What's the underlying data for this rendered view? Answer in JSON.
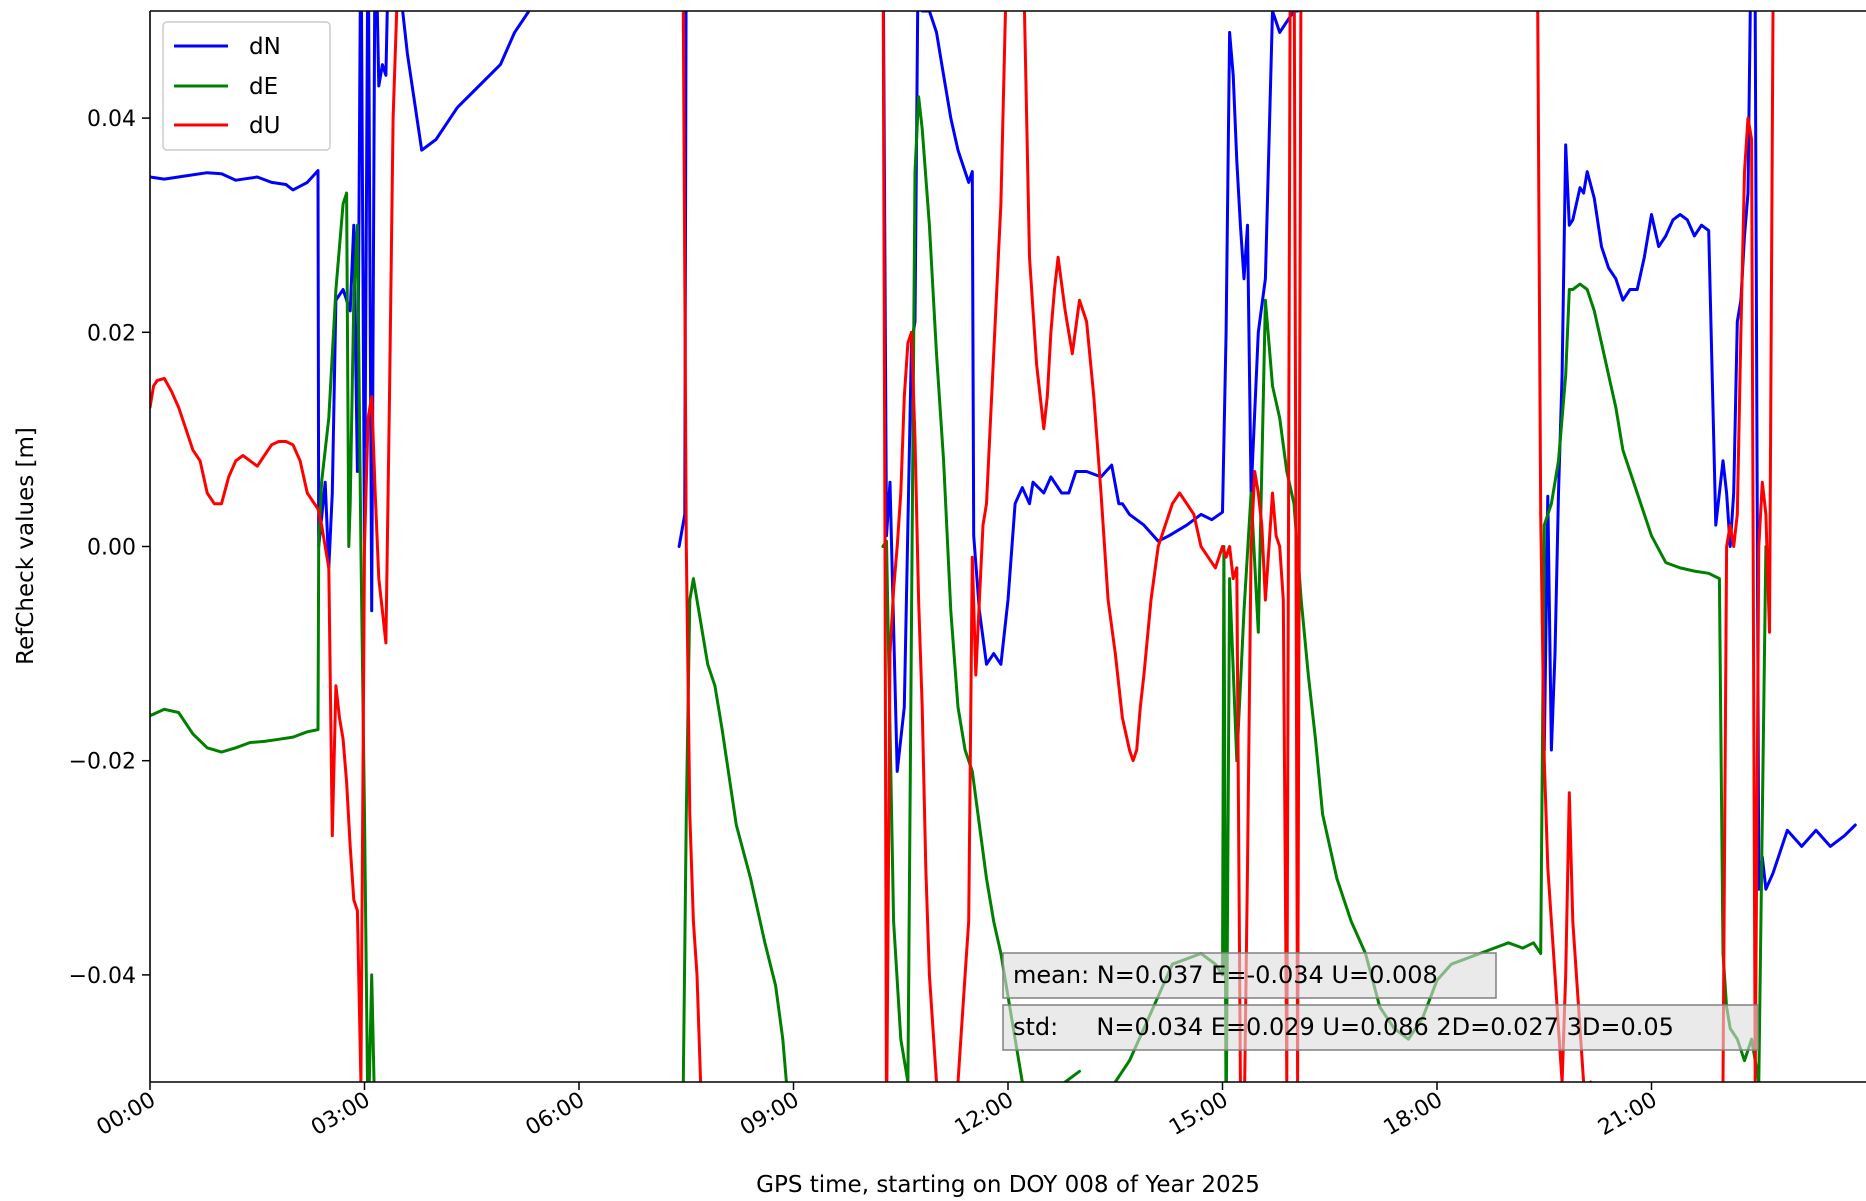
{
  "chart_data": {
    "type": "line",
    "xlabel": "GPS time, starting on DOY 008 of Year 2025",
    "ylabel": "RefCheck values [m]",
    "xlim": [
      0,
      24
    ],
    "ylim": [
      -0.05,
      0.05
    ],
    "x_ticks": [
      {
        "value": 0,
        "label": "00:00"
      },
      {
        "value": 3,
        "label": "03:00"
      },
      {
        "value": 6,
        "label": "06:00"
      },
      {
        "value": 9,
        "label": "09:00"
      },
      {
        "value": 12,
        "label": "12:00"
      },
      {
        "value": 15,
        "label": "15:00"
      },
      {
        "value": 18,
        "label": "18:00"
      },
      {
        "value": 21,
        "label": "21:00"
      }
    ],
    "y_ticks": [
      {
        "value": 0.04,
        "label": "0.04"
      },
      {
        "value": 0.02,
        "label": "0.02"
      },
      {
        "value": 0.0,
        "label": "0.00"
      },
      {
        "value": -0.02,
        "label": "−0.02"
      },
      {
        "value": -0.04,
        "label": "−0.04"
      }
    ],
    "grid": false,
    "legend_position": "top-left",
    "series": [
      {
        "name": "dN",
        "color": "#0000ff",
        "x": [
          0.0,
          0.2,
          0.5,
          0.8,
          1.0,
          1.2,
          1.5,
          1.7,
          1.9,
          2.0,
          2.2,
          2.35,
          2.36,
          2.45,
          2.5,
          2.55,
          2.6,
          2.7,
          2.8,
          2.85,
          2.9,
          2.95,
          3.0,
          3.05,
          3.1,
          3.15,
          3.2,
          3.25,
          3.3,
          3.35,
          3.5,
          3.6,
          3.8,
          4.0,
          4.3,
          4.6,
          4.9,
          5.1,
          5.3
        ],
        "y": [
          0.0345,
          0.0343,
          0.0346,
          0.0349,
          0.0348,
          0.0342,
          0.0345,
          0.034,
          0.0338,
          0.0333,
          0.034,
          0.0351,
          0.0,
          0.006,
          -0.002,
          0.005,
          0.023,
          0.024,
          0.022,
          0.03,
          0.007,
          0.06,
          0.0,
          0.06,
          -0.006,
          0.06,
          0.043,
          0.045,
          0.044,
          0.06,
          0.052,
          0.046,
          0.037,
          0.038,
          0.041,
          0.043,
          0.045,
          0.048,
          0.05
        ]
      },
      {
        "name": "dN",
        "color": "#0000ff",
        "x": [
          7.4,
          7.48,
          7.5
        ],
        "y": [
          0.0,
          0.003,
          0.06
        ]
      },
      {
        "name": "dN",
        "color": "#0000ff",
        "x": [
          10.25,
          10.3,
          10.35,
          10.45,
          10.55,
          10.6,
          10.65,
          10.7,
          10.75,
          10.8,
          10.9,
          11.0,
          11.1,
          11.2,
          11.3,
          11.35,
          11.45,
          11.5,
          11.52,
          11.6,
          11.7,
          11.8,
          11.9,
          12.0,
          12.1,
          12.2,
          12.3,
          12.35,
          12.5,
          12.6,
          12.75,
          12.85,
          12.95,
          13.1,
          13.3,
          13.45,
          13.55,
          13.6,
          13.7,
          13.9,
          14.1,
          14.25,
          14.5,
          14.7,
          14.85,
          15.0,
          15.05,
          15.1,
          15.15,
          15.2,
          15.25,
          15.3,
          15.35,
          15.4,
          15.5,
          15.6,
          15.7,
          15.8,
          15.9,
          16.0,
          16.05
        ],
        "y": [
          0.06,
          0.001,
          0.006,
          -0.021,
          -0.015,
          0.002,
          0.019,
          0.021,
          0.06,
          0.05,
          0.05,
          0.048,
          0.044,
          0.04,
          0.037,
          0.036,
          0.034,
          0.035,
          0.001,
          -0.006,
          -0.011,
          -0.01,
          -0.011,
          -0.005,
          0.004,
          0.0055,
          0.004,
          0.006,
          0.005,
          0.0065,
          0.005,
          0.005,
          0.007,
          0.007,
          0.0065,
          0.0076,
          0.004,
          0.004,
          0.003,
          0.002,
          0.0005,
          0.001,
          0.002,
          0.003,
          0.0025,
          0.0032,
          0.02,
          0.048,
          0.044,
          0.036,
          0.03,
          0.025,
          0.03,
          0.005,
          0.02,
          0.025,
          0.05,
          0.048,
          0.049,
          0.05,
          0.05
        ]
      },
      {
        "name": "dN",
        "color": "#0000ff",
        "x": [
          19.5,
          19.55,
          19.6,
          19.65,
          19.7,
          19.75,
          19.8,
          19.85,
          19.9,
          19.95,
          20.0,
          20.05,
          20.1,
          20.2,
          20.3,
          20.4,
          20.5,
          20.6,
          20.7,
          20.8,
          20.9,
          21.0,
          21.1,
          21.2,
          21.3,
          21.4,
          21.5,
          21.6,
          21.7,
          21.8,
          21.9,
          22.0,
          22.05,
          22.1,
          22.15,
          22.2,
          22.25,
          22.3,
          22.35,
          22.4,
          22.45,
          22.5,
          22.55,
          22.6,
          22.7,
          22.9,
          23.1,
          23.3,
          23.5,
          23.7,
          23.85
        ],
        "y": [
          -0.019,
          0.0047,
          -0.019,
          -0.01,
          0.005,
          0.016,
          0.0375,
          0.03,
          0.0305,
          0.032,
          0.0335,
          0.033,
          0.035,
          0.0325,
          0.028,
          0.026,
          0.025,
          0.023,
          0.024,
          0.024,
          0.027,
          0.031,
          0.028,
          0.029,
          0.0305,
          0.031,
          0.0305,
          0.029,
          0.03,
          0.0295,
          0.002,
          0.008,
          0.005,
          0.0,
          0.005,
          0.021,
          0.023,
          0.029,
          0.033,
          0.06,
          0.05,
          -0.032,
          -0.029,
          -0.032,
          -0.0305,
          -0.0265,
          -0.028,
          -0.0265,
          -0.028,
          -0.027,
          -0.026
        ]
      },
      {
        "name": "dE",
        "color": "#008000",
        "x": [
          0.0,
          0.1,
          0.2,
          0.4,
          0.6,
          0.8,
          1.0,
          1.2,
          1.4,
          1.6,
          1.8,
          2.0,
          2.2,
          2.35,
          2.36,
          2.4,
          2.5,
          2.6,
          2.7,
          2.75,
          2.78,
          2.8,
          2.85,
          2.9,
          2.95,
          3.0,
          3.05,
          3.1,
          3.15
        ],
        "y": [
          -0.0158,
          -0.0155,
          -0.0152,
          -0.0155,
          -0.0175,
          -0.0188,
          -0.0192,
          -0.0188,
          -0.0183,
          -0.0182,
          -0.018,
          -0.0178,
          -0.0173,
          -0.0171,
          0.0,
          0.006,
          0.012,
          0.024,
          0.032,
          0.033,
          0.0,
          0.004,
          0.023,
          0.03,
          0.0,
          -0.025,
          -0.055,
          -0.04,
          -0.055
        ]
      },
      {
        "name": "dE",
        "color": "#008000",
        "x": [
          7.45,
          7.5,
          7.55,
          7.6,
          7.7,
          7.8,
          7.9,
          8.0,
          8.2,
          8.4,
          8.6,
          8.75,
          8.85,
          8.9
        ],
        "y": [
          -0.055,
          -0.025,
          -0.005,
          -0.003,
          -0.007,
          -0.011,
          -0.013,
          -0.017,
          -0.026,
          -0.031,
          -0.037,
          -0.041,
          -0.046,
          -0.05
        ]
      },
      {
        "name": "dE",
        "color": "#008000",
        "x": [
          10.25,
          10.3,
          10.4,
          10.5,
          10.6,
          10.7,
          10.75,
          10.8,
          10.9,
          11.0,
          11.1,
          11.2,
          11.3,
          11.4,
          11.5,
          11.6,
          11.7,
          11.8,
          11.9,
          12.0,
          12.2,
          12.4,
          12.6,
          12.8,
          13.0
        ],
        "y": [
          0.0,
          0.0005,
          -0.035,
          -0.046,
          -0.05,
          0.035,
          0.042,
          0.039,
          0.03,
          0.018,
          0.008,
          -0.006,
          -0.015,
          -0.019,
          -0.021,
          -0.026,
          -0.031,
          -0.035,
          -0.038,
          -0.042,
          -0.05,
          -0.055,
          -0.052,
          -0.05,
          -0.049
        ]
      },
      {
        "name": "dE",
        "color": "#008000",
        "x": [
          13.5,
          13.7,
          13.9,
          14.1,
          14.3,
          14.5,
          14.7,
          14.9,
          15.0,
          15.02,
          15.05,
          15.1,
          15.2,
          15.3,
          15.4,
          15.5,
          15.6,
          15.7,
          15.8,
          15.9,
          16.0,
          16.1,
          16.2,
          16.3,
          16.4,
          16.6,
          16.8,
          17.0,
          17.2,
          17.4,
          17.6,
          17.8,
          18.0,
          18.2,
          18.4,
          18.6,
          18.8,
          19.0,
          19.2,
          19.35,
          19.45,
          19.5
        ],
        "y": [
          -0.05,
          -0.048,
          -0.045,
          -0.042,
          -0.039,
          -0.0385,
          -0.038,
          -0.039,
          -0.04,
          0.0,
          -0.055,
          -0.003,
          -0.02,
          -0.006,
          0.005,
          -0.008,
          0.023,
          0.015,
          0.012,
          0.007,
          0.004,
          -0.005,
          -0.012,
          -0.018,
          -0.025,
          -0.031,
          -0.035,
          -0.038,
          -0.043,
          -0.045,
          -0.046,
          -0.044,
          -0.0405,
          -0.039,
          -0.0385,
          -0.038,
          -0.0375,
          -0.037,
          -0.0375,
          -0.037,
          -0.038,
          0.002
        ]
      },
      {
        "name": "dE",
        "color": "#008000",
        "x": [
          19.5,
          19.6,
          19.7,
          19.8,
          19.85,
          19.9,
          20.0,
          20.1,
          20.2,
          20.3,
          20.4,
          20.5,
          20.6,
          20.8,
          21.0,
          21.2,
          21.4,
          21.6,
          21.8,
          21.95,
          22.0,
          22.05,
          22.1,
          22.2,
          22.3,
          22.4,
          22.5,
          22.6
        ],
        "y": [
          0.002,
          0.004,
          0.008,
          0.016,
          0.024,
          0.024,
          0.0245,
          0.024,
          0.022,
          0.019,
          0.016,
          0.013,
          0.009,
          0.005,
          0.001,
          -0.0015,
          -0.002,
          -0.0023,
          -0.0025,
          -0.003,
          -0.038,
          -0.043,
          -0.045,
          -0.046,
          -0.048,
          -0.046,
          -0.05,
          0.0
        ]
      },
      {
        "name": "dU",
        "color": "#ff0000",
        "x": [
          0.0,
          0.05,
          0.1,
          0.2,
          0.3,
          0.4,
          0.5,
          0.6,
          0.7,
          0.8,
          0.9,
          1.0,
          1.1,
          1.2,
          1.3,
          1.4,
          1.5,
          1.6,
          1.7,
          1.8,
          1.9,
          2.0,
          2.1,
          2.2,
          2.3,
          2.35,
          2.4,
          2.5,
          2.55,
          2.6,
          2.65,
          2.7,
          2.75,
          2.8,
          2.85,
          2.9,
          2.95,
          3.0,
          3.05,
          3.1,
          3.15,
          3.2,
          3.25,
          3.3,
          3.35,
          3.4,
          3.45,
          3.5,
          3.55,
          3.6
        ],
        "y": [
          0.013,
          0.015,
          0.0155,
          0.0157,
          0.0145,
          0.013,
          0.011,
          0.009,
          0.008,
          0.005,
          0.004,
          0.004,
          0.0065,
          0.008,
          0.0085,
          0.008,
          0.0075,
          0.0085,
          0.0095,
          0.0098,
          0.0098,
          0.0095,
          0.008,
          0.005,
          0.004,
          0.0035,
          0.002,
          -0.002,
          -0.027,
          -0.013,
          -0.016,
          -0.018,
          -0.022,
          -0.028,
          -0.033,
          -0.034,
          -0.05,
          0.0,
          0.012,
          0.014,
          0.005,
          -0.003,
          -0.006,
          -0.009,
          0.014,
          0.04,
          0.05,
          0.06,
          0.055,
          0.06
        ]
      },
      {
        "name": "dU",
        "color": "#ff0000",
        "x": [
          7.45,
          7.5,
          7.55,
          7.6,
          7.65,
          7.7
        ],
        "y": [
          0.06,
          0.0,
          -0.025,
          -0.035,
          -0.04,
          -0.05
        ]
      },
      {
        "name": "dU",
        "color": "#ff0000",
        "x": [
          10.25,
          10.28,
          10.3,
          10.35,
          10.4,
          10.45,
          10.5,
          10.55,
          10.6,
          10.65,
          10.7,
          10.75,
          10.8,
          10.85,
          10.9,
          11.0,
          11.1,
          11.2,
          11.3,
          11.4,
          11.45,
          11.5,
          11.55,
          11.6,
          11.65,
          11.7,
          11.8,
          11.9,
          12.0,
          12.1,
          12.2,
          12.3,
          12.4,
          12.5,
          12.55,
          12.6,
          12.65,
          12.7,
          12.8,
          12.9,
          13.0,
          13.1,
          13.2,
          13.3,
          13.4,
          13.5,
          13.6,
          13.7,
          13.75,
          13.8,
          13.85,
          13.9,
          14.0,
          14.1,
          14.2,
          14.3,
          14.4,
          14.5,
          14.6,
          14.7,
          14.8,
          14.9,
          15.0,
          15.05,
          15.1,
          15.15,
          15.2
        ],
        "y": [
          0.06,
          0.0,
          -0.055,
          -0.01,
          -0.004,
          0.0,
          0.005,
          0.014,
          0.019,
          0.02,
          0.01,
          -0.005,
          -0.015,
          -0.03,
          -0.04,
          -0.05,
          -0.055,
          -0.06,
          -0.05,
          -0.04,
          -0.035,
          -0.001,
          -0.012,
          -0.005,
          0.002,
          0.004,
          0.018,
          0.032,
          0.06,
          0.06,
          0.06,
          0.027,
          0.017,
          0.011,
          0.014,
          0.02,
          0.024,
          0.027,
          0.022,
          0.018,
          0.023,
          0.021,
          0.014,
          0.005,
          -0.005,
          -0.01,
          -0.016,
          -0.019,
          -0.02,
          -0.019,
          -0.015,
          -0.012,
          -0.005,
          0.0,
          0.002,
          0.004,
          0.005,
          0.004,
          0.003,
          0.0,
          -0.001,
          -0.002,
          0.0,
          -0.001,
          0.0,
          -0.003,
          -0.002
        ]
      },
      {
        "name": "dU",
        "color": "#ff0000",
        "x": [
          15.2,
          15.25,
          15.3,
          15.35,
          15.4,
          15.45,
          15.5,
          15.55,
          15.6,
          15.65,
          15.7,
          15.75,
          15.8,
          15.85,
          15.9,
          15.95,
          16.0,
          16.05,
          16.1,
          16.15,
          16.2
        ],
        "y": [
          -0.002,
          -0.05,
          -0.055,
          -0.03,
          0.0,
          0.007,
          0.005,
          0.002,
          -0.005,
          0.0,
          0.005,
          0.001,
          0.0,
          -0.005,
          -0.05,
          0.06,
          0.06,
          -0.05,
          0.06,
          0.06,
          0.06
        ]
      },
      {
        "name": "dU",
        "color": "#ff0000",
        "x": [
          19.4,
          19.45,
          19.5,
          19.55,
          19.6,
          19.65,
          19.7,
          19.75,
          19.8,
          19.85,
          19.9,
          19.95,
          20.0,
          20.05,
          20.1,
          20.15,
          20.2
        ],
        "y": [
          0.06,
          0.003,
          -0.02,
          -0.03,
          -0.035,
          -0.04,
          -0.045,
          -0.05,
          -0.04,
          -0.023,
          -0.035,
          -0.04,
          -0.045,
          -0.05,
          -0.055,
          -0.05,
          -0.055
        ]
      },
      {
        "name": "dU",
        "color": "#ff0000",
        "x": [
          22.0,
          22.05,
          22.1,
          22.15,
          22.2,
          22.25,
          22.3,
          22.35,
          22.4,
          22.45,
          22.5,
          22.55,
          22.6,
          22.65,
          22.7
        ],
        "y": [
          -0.05,
          0.0,
          0.002,
          0.0,
          0.003,
          0.02,
          0.035,
          0.04,
          0.038,
          -0.05,
          0.0,
          0.006,
          0.003,
          -0.008,
          0.05
        ]
      }
    ],
    "legend": [
      {
        "label": "dN",
        "color": "#0000ff"
      },
      {
        "label": "dE",
        "color": "#008000"
      },
      {
        "label": "dU",
        "color": "#ff0000"
      }
    ],
    "annotations": {
      "mean": "mean: N=0.037 E=-0.034 U=0.008",
      "std": "std:     N=0.034 E=0.029 U=0.086 2D=0.027 3D=0.05"
    }
  }
}
